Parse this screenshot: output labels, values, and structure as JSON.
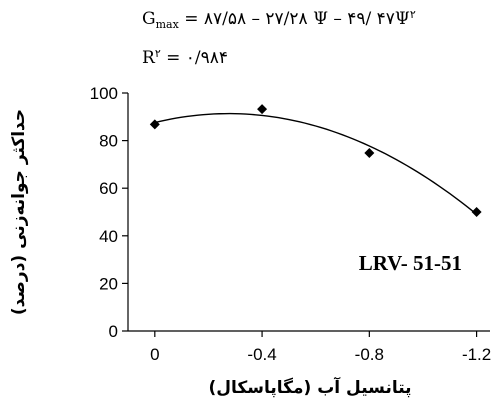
{
  "equation": {
    "g_symbol": "G",
    "g_sub": "max",
    "rhs": "= ۸۷/۵۸ – ۲۷/۲۸ Ψ – ۴۹/ ۴۷Ψ",
    "rhs_sup": "۲",
    "r_symbol": "R",
    "r_sup": "۲",
    "r_value": "= ۰/۹۸۴"
  },
  "chart_data": {
    "type": "scatter",
    "title": "",
    "xlabel": "پتانسیل آب (مگاپاسکال)",
    "ylabel": "حداکثر جوانه‌زنی (درصد)",
    "x_ticks": [
      0,
      -0.4,
      -0.8,
      -1.2
    ],
    "x_tick_labels": [
      "0",
      "-0.4",
      "-0.8",
      "-1.2"
    ],
    "x_axis_reversed": true,
    "xlim": [
      0.1,
      -1.25
    ],
    "y_ticks": [
      0,
      20,
      40,
      60,
      80,
      100
    ],
    "y_tick_labels": [
      "0",
      "20",
      "40",
      "60",
      "80",
      "100"
    ],
    "ylim": [
      0,
      100
    ],
    "grid": false,
    "legend": "none",
    "annotation": "LRV- 51-51",
    "marker": "diamond",
    "series": [
      {
        "x": [
          0,
          -0.4,
          -0.8,
          -1.2
        ],
        "y": [
          86.8,
          93.2,
          74.8,
          50.0
        ]
      }
    ],
    "trendline": {
      "type": "polynomial-2",
      "a": 87.58,
      "b": -27.28,
      "c": -49.47
    }
  }
}
